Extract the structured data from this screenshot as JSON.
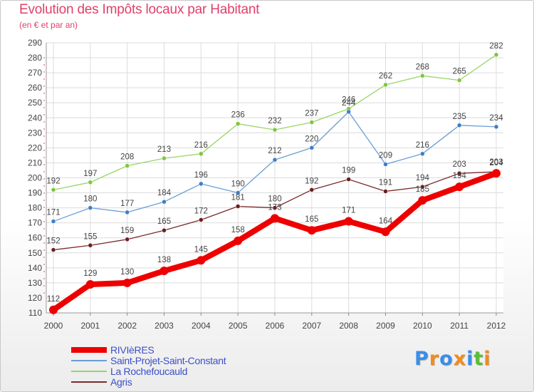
{
  "title": "Evolution des Impôts locaux par Habitant",
  "subtitle": "(en € et par an)",
  "logo": {
    "text": "Proxiti",
    "letters": [
      {
        "ch": "P",
        "color": "#3a8ee6"
      },
      {
        "ch": "r",
        "color": "#f08c1e"
      },
      {
        "ch": "o",
        "color": "#3a8ee6"
      },
      {
        "ch": "x",
        "color": "#f08c1e"
      },
      {
        "ch": "i",
        "color": "#3a8ee6"
      },
      {
        "ch": "t",
        "color": "#5cbd3a"
      },
      {
        "ch": "i",
        "color": "#f08c1e"
      }
    ]
  },
  "chart_data": {
    "type": "line",
    "title": "Evolution des Impôts locaux par Habitant",
    "subtitle": "(en € et par an)",
    "xlabel": "",
    "ylabel": "",
    "x": [
      "2000",
      "2001",
      "2002",
      "2003",
      "2004",
      "2005",
      "2006",
      "2007",
      "2008",
      "2009",
      "2010",
      "2011",
      "2012"
    ],
    "ylim": [
      110,
      290
    ],
    "yticks": [
      "110",
      "120",
      "130",
      "140",
      "150",
      "160",
      "170",
      "180",
      "190",
      "200",
      "210",
      "220",
      "230",
      "240",
      "250",
      "260",
      "270",
      "280",
      "290"
    ],
    "grid": true,
    "legend_position": "bottom-left",
    "series": [
      {
        "name": "La Rochefoucauld",
        "color": "#99d566",
        "marker": "#7fc73f",
        "width": 1.3,
        "values": [
          192,
          197,
          208,
          213,
          216,
          236,
          232,
          237,
          246,
          262,
          268,
          265,
          282
        ],
        "labels": [
          "192",
          "197",
          "208",
          "213",
          "216",
          "236",
          "232",
          "237",
          "246",
          "262",
          "268",
          "265",
          "282"
        ]
      },
      {
        "name": "Saint-Projet-Saint-Constant",
        "color": "#6a9ed6",
        "marker": "#3d7fc7",
        "width": 1.3,
        "values": [
          171,
          180,
          177,
          184,
          196,
          190,
          212,
          220,
          244,
          209,
          216,
          235,
          234
        ],
        "labels": [
          "171",
          "180",
          "177",
          "184",
          "196",
          "190",
          "212",
          "220",
          "244",
          "209",
          "216",
          "235",
          "234"
        ]
      },
      {
        "name": "Agris",
        "color": "#7a2b2b",
        "marker": "#6b1f1f",
        "width": 1.3,
        "values": [
          152,
          155,
          159,
          165,
          172,
          181,
          180,
          192,
          199,
          191,
          194,
          203,
          204
        ],
        "labels": [
          "152",
          "155",
          "159",
          "165",
          "172",
          "181",
          "180",
          "192",
          "199",
          "191",
          "194",
          "203",
          "204"
        ]
      },
      {
        "name": "RIVIèRES",
        "color": "#ee0000",
        "marker": "#ee0000",
        "width": 8,
        "values": [
          112,
          129,
          130,
          138,
          145,
          158,
          173,
          165,
          171,
          164,
          185,
          194,
          203
        ],
        "labels": [
          "112",
          "129",
          "130",
          "138",
          "145",
          "158",
          "173",
          "165",
          "171",
          "164",
          "185",
          "194",
          "203"
        ]
      }
    ],
    "legend": [
      "RIVIèRES",
      "Saint-Projet-Saint-Constant",
      "La Rochefoucauld",
      "Agris"
    ]
  }
}
